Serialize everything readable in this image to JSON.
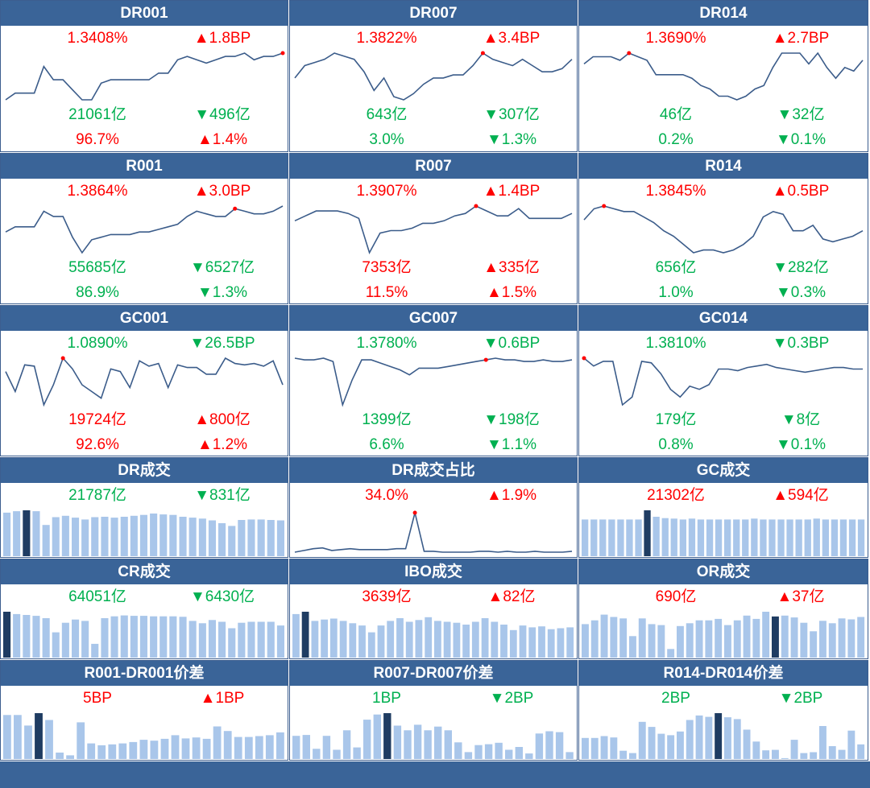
{
  "colors": {
    "header": "#3a6498",
    "up": "#ff0000",
    "down": "#00b050",
    "line": "#3b5c8a",
    "bar": "#a9c6ea",
    "bar_highlight": "#1f3c62",
    "marker": "#ff0000"
  },
  "rows": [
    {
      "type": "line3",
      "panels": [
        {
          "title": "DR001",
          "l1": "1.3408%",
          "r1": "▲1.8BP",
          "c1": "up",
          "r1c": "up",
          "l2": "21061亿",
          "r2": "▼496亿",
          "c2": "dn",
          "r2c": "dn",
          "l3": "96.7%",
          "r3": "▲1.4%",
          "c3": "up",
          "r3c": "up",
          "chart_data": {
            "type": "line",
            "values": [
              1.2,
              1.22,
              1.22,
              1.22,
              1.3,
              1.26,
              1.26,
              1.23,
              1.2,
              1.2,
              1.25,
              1.26,
              1.26,
              1.26,
              1.26,
              1.26,
              1.28,
              1.28,
              1.32,
              1.33,
              1.32,
              1.31,
              1.32,
              1.33,
              1.33,
              1.34,
              1.32,
              1.33,
              1.33,
              1.34
            ],
            "marker": 29
          }
        },
        {
          "title": "DR007",
          "l1": "1.3822%",
          "r1": "▲3.4BP",
          "c1": "up",
          "r1c": "up",
          "l2": "643亿",
          "r2": "▼307亿",
          "c2": "dn",
          "r2c": "dn",
          "l3": "3.0%",
          "r3": "▼1.3%",
          "c3": "dn",
          "r3c": "dn",
          "chart_data": {
            "type": "line",
            "values": [
              1.3,
              1.34,
              1.35,
              1.36,
              1.38,
              1.37,
              1.36,
              1.32,
              1.26,
              1.3,
              1.24,
              1.23,
              1.25,
              1.28,
              1.3,
              1.3,
              1.31,
              1.31,
              1.34,
              1.38,
              1.36,
              1.35,
              1.34,
              1.36,
              1.34,
              1.32,
              1.32,
              1.33,
              1.36
            ],
            "marker": 19
          }
        },
        {
          "title": "DR014",
          "l1": "1.3690%",
          "r1": "▲2.7BP",
          "c1": "up",
          "r1c": "up",
          "l2": "46亿",
          "r2": "▼32亿",
          "c2": "dn",
          "r2c": "dn",
          "l3": "0.2%",
          "r3": "▼0.1%",
          "c3": "dn",
          "r3c": "dn",
          "chart_data": {
            "type": "line",
            "values": [
              1.34,
              1.36,
              1.36,
              1.36,
              1.35,
              1.37,
              1.36,
              1.35,
              1.31,
              1.31,
              1.31,
              1.31,
              1.3,
              1.28,
              1.27,
              1.25,
              1.25,
              1.24,
              1.25,
              1.27,
              1.28,
              1.33,
              1.37,
              1.37,
              1.37,
              1.34,
              1.37,
              1.33,
              1.3,
              1.33,
              1.32,
              1.35
            ],
            "marker": 5
          }
        }
      ]
    },
    {
      "type": "line3",
      "panels": [
        {
          "title": "R001",
          "l1": "1.3864%",
          "r1": "▲3.0BP",
          "c1": "up",
          "r1c": "up",
          "l2": "55685亿",
          "r2": "▼6527亿",
          "c2": "dn",
          "r2c": "dn",
          "l3": "86.9%",
          "r3": "▼1.3%",
          "c3": "dn",
          "r3c": "dn",
          "chart_data": {
            "type": "line",
            "values": [
              1.26,
              1.28,
              1.28,
              1.28,
              1.34,
              1.32,
              1.32,
              1.24,
              1.18,
              1.23,
              1.24,
              1.25,
              1.25,
              1.25,
              1.26,
              1.26,
              1.27,
              1.28,
              1.29,
              1.32,
              1.34,
              1.33,
              1.32,
              1.32,
              1.35,
              1.34,
              1.33,
              1.33,
              1.34,
              1.36
            ],
            "marker": 24
          }
        },
        {
          "title": "R007",
          "l1": "1.3907%",
          "r1": "▲1.4BP",
          "c1": "up",
          "r1c": "up",
          "l2": "7353亿",
          "r2": "▲335亿",
          "c2": "up",
          "r2c": "up",
          "l3": "11.5%",
          "r3": "▲1.5%",
          "c3": "up",
          "r3c": "up",
          "chart_data": {
            "type": "line",
            "values": [
              1.33,
              1.35,
              1.37,
              1.37,
              1.37,
              1.36,
              1.34,
              1.2,
              1.28,
              1.29,
              1.29,
              1.3,
              1.32,
              1.32,
              1.33,
              1.35,
              1.36,
              1.39,
              1.37,
              1.35,
              1.35,
              1.38,
              1.34,
              1.34,
              1.34,
              1.34,
              1.36
            ],
            "marker": 17
          }
        },
        {
          "title": "R014",
          "l1": "1.3845%",
          "r1": "▲0.5BP",
          "c1": "up",
          "r1c": "up",
          "l2": "656亿",
          "r2": "▼282亿",
          "c2": "dn",
          "r2c": "dn",
          "l3": "1.0%",
          "r3": "▼0.3%",
          "c3": "dn",
          "r3c": "dn",
          "chart_data": {
            "type": "line",
            "values": [
              1.33,
              1.37,
              1.38,
              1.37,
              1.36,
              1.36,
              1.34,
              1.32,
              1.29,
              1.27,
              1.24,
              1.21,
              1.22,
              1.22,
              1.21,
              1.22,
              1.24,
              1.27,
              1.34,
              1.36,
              1.35,
              1.29,
              1.29,
              1.31,
              1.26,
              1.25,
              1.26,
              1.27,
              1.29
            ],
            "marker": 2
          }
        }
      ]
    },
    {
      "type": "line3",
      "panels": [
        {
          "title": "GC001",
          "l1": "1.0890%",
          "r1": "▼26.5BP",
          "c1": "dn",
          "r1c": "dn",
          "l2": "19724亿",
          "r2": "▲800亿",
          "c2": "up",
          "r2c": "up",
          "l3": "92.6%",
          "r3": "▲1.2%",
          "c3": "up",
          "r3c": "up",
          "chart_data": {
            "type": "line",
            "values": [
              1.2,
              1.05,
              1.25,
              1.24,
              0.95,
              1.1,
              1.3,
              1.22,
              1.1,
              1.05,
              1.0,
              1.22,
              1.2,
              1.08,
              1.28,
              1.24,
              1.26,
              1.08,
              1.25,
              1.23,
              1.23,
              1.18,
              1.18,
              1.3,
              1.26,
              1.25,
              1.26,
              1.24,
              1.28,
              1.1
            ],
            "marker": 6
          }
        },
        {
          "title": "GC007",
          "l1": "1.3780%",
          "r1": "▼0.6BP",
          "c1": "dn",
          "r1c": "dn",
          "l2": "1399亿",
          "r2": "▼198亿",
          "c2": "dn",
          "r2c": "dn",
          "l3": "6.6%",
          "r3": "▼1.1%",
          "c3": "dn",
          "r3c": "dn",
          "chart_data": {
            "type": "line",
            "values": [
              1.38,
              1.37,
              1.37,
              1.38,
              1.36,
              1.1,
              1.25,
              1.37,
              1.37,
              1.35,
              1.33,
              1.31,
              1.28,
              1.32,
              1.32,
              1.32,
              1.33,
              1.34,
              1.35,
              1.36,
              1.37,
              1.38,
              1.37,
              1.37,
              1.36,
              1.36,
              1.37,
              1.36,
              1.36,
              1.37
            ],
            "marker": 20
          }
        },
        {
          "title": "GC014",
          "l1": "1.3810%",
          "r1": "▼0.3BP",
          "c1": "dn",
          "r1c": "dn",
          "l2": "179亿",
          "r2": "▼8亿",
          "c2": "dn",
          "r2c": "dn",
          "l3": "0.8%",
          "r3": "▼0.1%",
          "c3": "dn",
          "r3c": "dn",
          "chart_data": {
            "type": "line",
            "values": [
              1.4,
              1.35,
              1.38,
              1.38,
              1.1,
              1.15,
              1.38,
              1.37,
              1.3,
              1.2,
              1.15,
              1.22,
              1.2,
              1.23,
              1.33,
              1.33,
              1.32,
              1.34,
              1.35,
              1.36,
              1.34,
              1.33,
              1.32,
              1.31,
              1.32,
              1.33,
              1.34,
              1.34,
              1.33,
              1.33
            ],
            "marker": 0
          }
        }
      ]
    },
    {
      "type": "mix",
      "panels": [
        {
          "title": "DR成交",
          "l1": "21787亿",
          "r1": "▼831亿",
          "c1": "dn",
          "r1c": "dn",
          "chart_data": {
            "type": "bar",
            "values": [
              95,
              98,
              100,
              98,
              68,
              85,
              88,
              84,
              80,
              85,
              86,
              84,
              86,
              88,
              90,
              93,
              91,
              90,
              86,
              84,
              82,
              78,
              72,
              66,
              79,
              80,
              80,
              79,
              78
            ],
            "highlight": 2
          }
        },
        {
          "title": "DR成交占比",
          "l1": "34.0%",
          "r1": "▲1.9%",
          "c1": "up",
          "r1c": "up",
          "chart_data": {
            "type": "line",
            "values": [
              2,
              4,
              6,
              7,
              4,
              5,
              6,
              5,
              5,
              5,
              5,
              6,
              6,
              48,
              3,
              3,
              2,
              2,
              2,
              2,
              3,
              3,
              2,
              3,
              2,
              2,
              3,
              2,
              2,
              2,
              3
            ],
            "marker": 13
          }
        },
        {
          "title": "GC成交",
          "l1": "21302亿",
          "r1": "▲594亿",
          "c1": "up",
          "r1c": "up",
          "chart_data": {
            "type": "bar",
            "values": [
              80,
              80,
              80,
              80,
              80,
              80,
              80,
              100,
              86,
              83,
              82,
              80,
              82,
              80,
              80,
              80,
              80,
              80,
              80,
              82,
              80,
              80,
              80,
              80,
              80,
              80,
              82,
              80,
              80,
              80,
              80,
              80
            ],
            "highlight": 7
          }
        }
      ]
    },
    {
      "type": "mix",
      "panels": [
        {
          "title": "CR成交",
          "l1": "64051亿",
          "r1": "▼6430亿",
          "c1": "dn",
          "r1c": "dn",
          "chart_data": {
            "type": "bar",
            "values": [
              100,
              95,
              93,
              91,
              86,
              55,
              76,
              83,
              80,
              30,
              86,
              90,
              92,
              91,
              91,
              90,
              90,
              90,
              89,
              80,
              75,
              82,
              78,
              64,
              76,
              78,
              78,
              78,
              70
            ],
            "highlight": 0
          }
        },
        {
          "title": "IBO成交",
          "l1": "3639亿",
          "r1": "▲82亿",
          "c1": "up",
          "r1c": "up",
          "chart_data": {
            "type": "bar",
            "values": [
              95,
              100,
              80,
              83,
              85,
              80,
              75,
              70,
              55,
              70,
              80,
              86,
              78,
              82,
              88,
              80,
              78,
              76,
              72,
              78,
              86,
              78,
              72,
              60,
              70,
              66,
              68,
              62,
              64,
              66
            ],
            "highlight": 1
          }
        },
        {
          "title": "OR成交",
          "l1": "690亿",
          "r1": "▲37亿",
          "c1": "up",
          "r1c": "up",
          "chart_data": {
            "type": "bar",
            "values": [
              70,
              78,
              90,
              85,
              82,
              45,
              82,
              70,
              68,
              18,
              66,
              72,
              78,
              78,
              81,
              68,
              78,
              88,
              81,
              96,
              86,
              88,
              84,
              73,
              55,
              77,
              72,
              82,
              80,
              85
            ],
            "highlight": 20
          }
        }
      ]
    },
    {
      "type": "mix",
      "panels": [
        {
          "title": "R001-DR001价差",
          "l1": "5BP",
          "r1": "▲1BP",
          "c1": "up",
          "r1c": "up",
          "chart_data": {
            "type": "bar",
            "values": [
              96,
              96,
              73,
              100,
              85,
              14,
              8,
              80,
              34,
              30,
              32,
              34,
              37,
              42,
              40,
              44,
              52,
              45,
              47,
              44,
              71,
              61,
              48,
              48,
              50,
              52,
              58
            ],
            "highlight": 3
          }
        },
        {
          "title": "R007-DR007价差",
          "l1": "1BP",
          "r1": "▼2BP",
          "c1": "dn",
          "r1c": "dn",
          "chart_data": {
            "type": "bar",
            "values": [
              50,
              52,
              22,
              50,
              20,
              62,
              25,
              85,
              96,
              99,
              72,
              62,
              74,
              62,
              70,
              62,
              36,
              15,
              30,
              32,
              35,
              20,
              26,
              12,
              55,
              60,
              58,
              15
            ],
            "highlight": 9
          }
        },
        {
          "title": "R014-DR014价差",
          "l1": "2BP",
          "r1": "▼2BP",
          "c1": "dn",
          "r1c": "dn",
          "chart_data": {
            "type": "bar",
            "values": [
              46,
              46,
              50,
              47,
              18,
              13,
              81,
              70,
              55,
              52,
              60,
              85,
              95,
              92,
              100,
              91,
              87,
              64,
              38,
              19,
              20,
              2,
              42,
              13,
              15,
              72,
              28,
              20,
              62,
              32
            ],
            "highlight": 14
          }
        }
      ]
    }
  ]
}
